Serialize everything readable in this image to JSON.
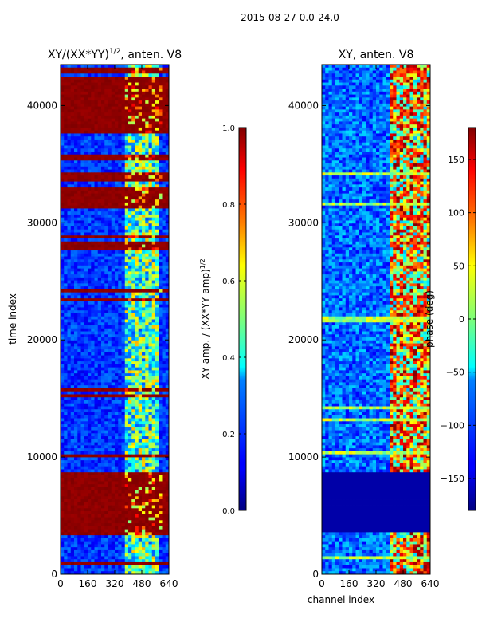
{
  "figure_title": "2015-08-27 0.0-24.0",
  "chart_data": [
    {
      "type": "heatmap",
      "title": "XY/(XX*YY)^{1/2}, anten. V8",
      "title_main": "XY/(XX*YY)",
      "title_exp": "1/2",
      "title_tail": ", anten. V8",
      "xlabel": "",
      "ylabel": "time index",
      "xlim": [
        0,
        640
      ],
      "ylim": [
        0,
        43500
      ],
      "x_ticks": [
        0,
        160,
        320,
        480,
        640
      ],
      "x_tick_labels": [
        "0",
        "160",
        "320",
        "480",
        "640"
      ],
      "y_ticks": [
        0,
        10000,
        20000,
        30000,
        40000
      ],
      "y_tick_labels": [
        "0",
        "10000",
        "20000",
        "30000",
        "40000"
      ],
      "colorbar": {
        "label_main": "XY amp. / (XX*YY amp)",
        "label_exp": "1/2",
        "range": [
          0.0,
          1.0
        ],
        "ticks": [
          0.0,
          0.2,
          0.4,
          0.6,
          0.8,
          1.0
        ],
        "tick_labels": [
          "0.0",
          "0.2",
          "0.4",
          "0.6",
          "0.8",
          "1.0"
        ],
        "colormap": "jet"
      },
      "saturated_time_bands": [
        [
          3500,
          8600
        ],
        [
          27700,
          28300
        ],
        [
          31300,
          33000
        ],
        [
          33600,
          34200
        ],
        [
          35200,
          35800
        ],
        [
          37700,
          42500
        ],
        [
          42800,
          43200
        ]
      ]
    },
    {
      "type": "heatmap",
      "title": "XY, anten. V8",
      "xlabel": "channel index",
      "ylabel": "",
      "xlim": [
        0,
        640
      ],
      "ylim": [
        0,
        43500
      ],
      "x_ticks": [
        0,
        160,
        320,
        480,
        640
      ],
      "x_tick_labels": [
        "0",
        "160",
        "320",
        "480",
        "640"
      ],
      "y_ticks": [
        0,
        10000,
        20000,
        30000,
        40000
      ],
      "y_tick_labels": [
        "0",
        "10000",
        "20000",
        "30000",
        "40000"
      ],
      "colorbar": {
        "label": "phase (deg)",
        "range": [
          -180,
          180
        ],
        "ticks": [
          -150,
          -100,
          -50,
          0,
          50,
          100,
          150
        ],
        "tick_labels": [
          "−150",
          "−100",
          "−50",
          "0",
          "50",
          "100",
          "150"
        ],
        "colormap": "jet"
      },
      "flat_time_bands": [
        [
          3500,
          8600
        ]
      ]
    }
  ],
  "colors": {
    "jet_dark_red": "#800000",
    "jet_dark_blue": "#00007f",
    "background": "#ffffff"
  }
}
